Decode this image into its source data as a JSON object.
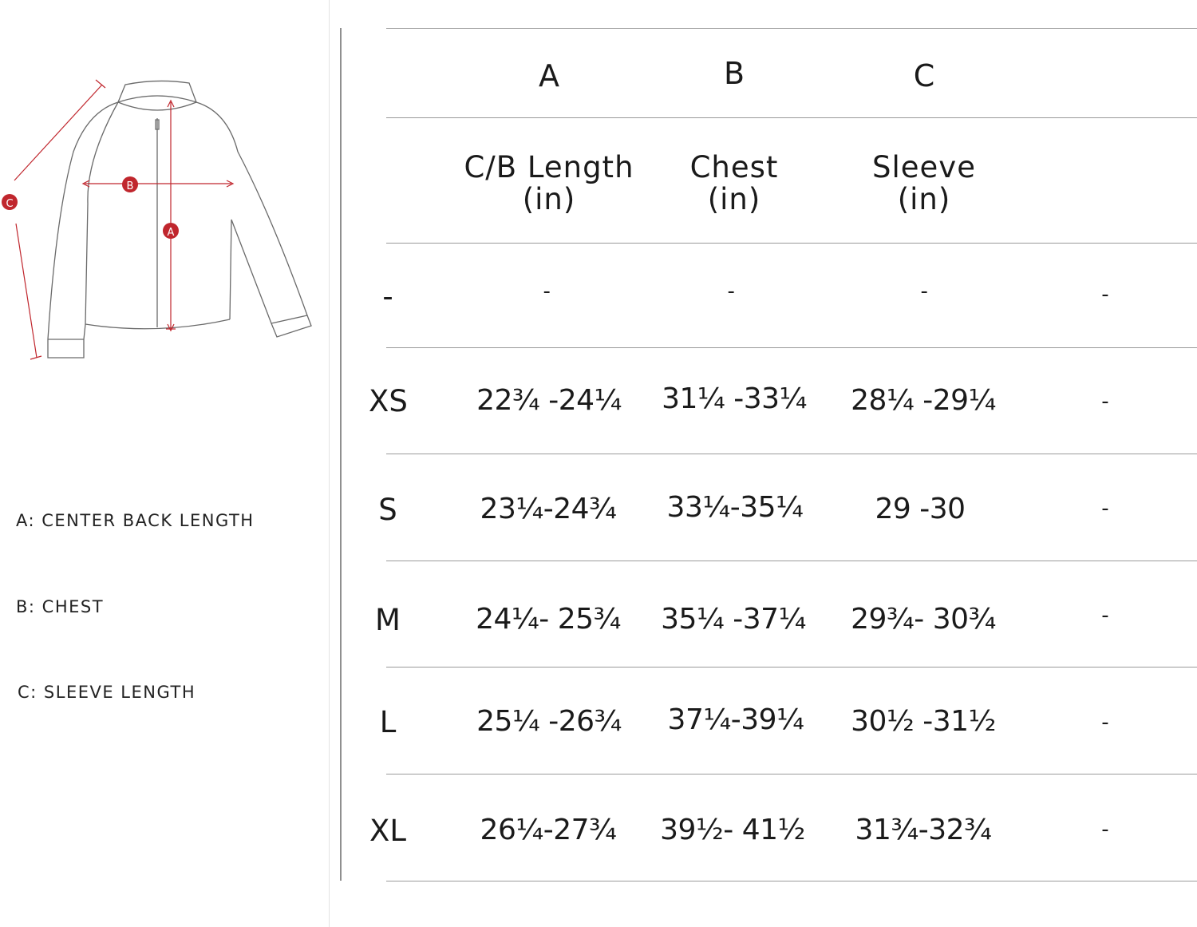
{
  "diagram": {
    "markers": [
      "A",
      "B",
      "C"
    ],
    "marker_color": "#c0262d"
  },
  "legend": [
    {
      "text": "A:  CENTER BACK LENGTH"
    },
    {
      "text": "B:  CHEST"
    },
    {
      "text": "C:  SLEEVE LENGTH"
    }
  ],
  "table": {
    "letters": [
      "A",
      "B",
      "C"
    ],
    "headers": [
      {
        "line1": "C/B Length",
        "line2": "(in)"
      },
      {
        "line1": "Chest",
        "line2": "(in)"
      },
      {
        "line1": "Sleeve",
        "line2": "(in)"
      }
    ],
    "rows": [
      {
        "size": "-",
        "a": "-",
        "b": "-",
        "c": "-",
        "d": "-"
      },
      {
        "size": "XS",
        "a": "22¾ -24¼",
        "b": "31¼ -33¼",
        "c": "28¼ -29¼",
        "d": "-"
      },
      {
        "size": "S",
        "a": "23¼-24¾",
        "b": "33¼-35¼",
        "c": "29 -30",
        "d": "-"
      },
      {
        "size": "M",
        "a": "24¼- 25¾",
        "b": "35¼ -37¼",
        "c": "29¾- 30¾",
        "d": "-"
      },
      {
        "size": "L",
        "a": "25¼ -26¾",
        "b": "37¼-39¼",
        "c": "30½ -31½",
        "d": "-"
      },
      {
        "size": "XL",
        "a": "26¼-27¾",
        "b": "39½- 41½",
        "c": "31¾-32¾",
        "d": "-"
      }
    ]
  }
}
